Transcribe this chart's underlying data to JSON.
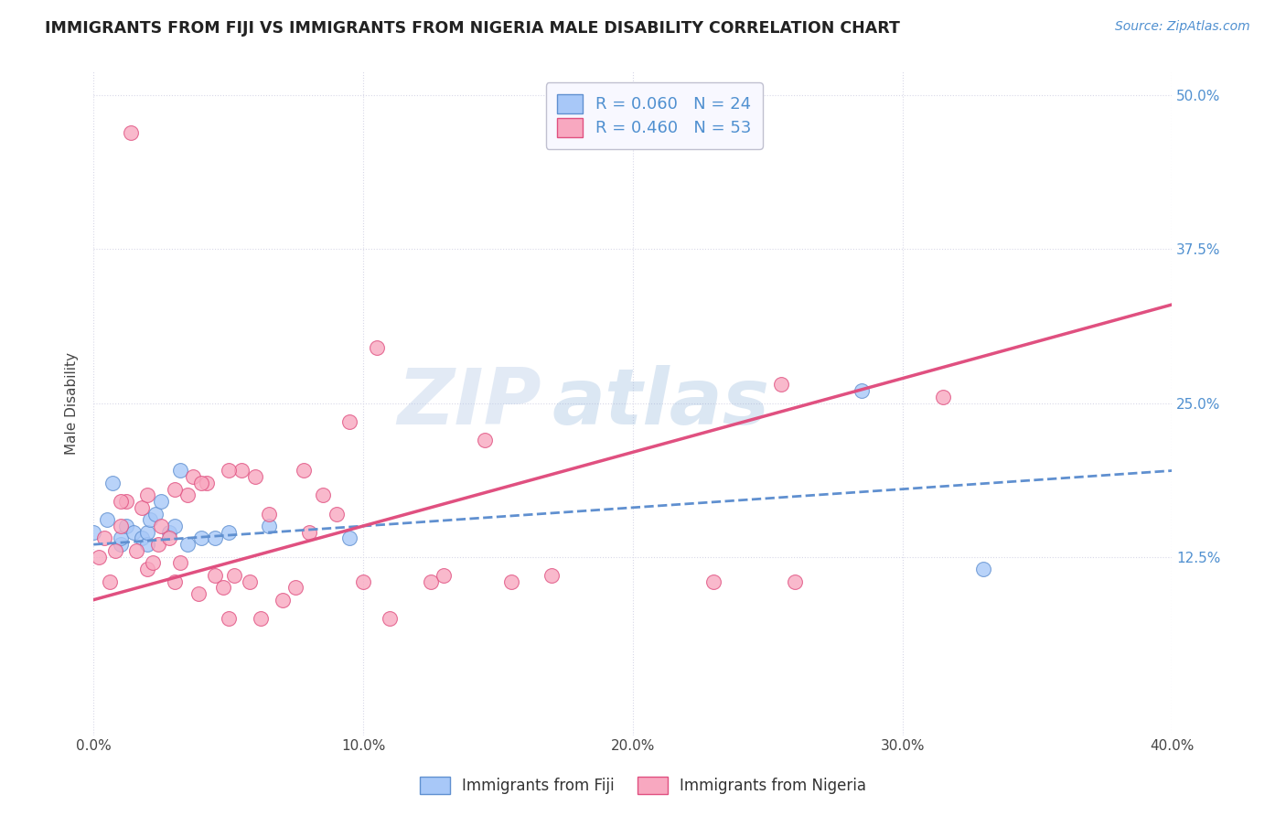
{
  "title": "IMMIGRANTS FROM FIJI VS IMMIGRANTS FROM NIGERIA MALE DISABILITY CORRELATION CHART",
  "source": "Source: ZipAtlas.com",
  "ylabel_label": "Male Disability",
  "xlim": [
    0.0,
    40.0
  ],
  "ylim": [
    -2.0,
    52.0
  ],
  "xticks": [
    0.0,
    10.0,
    20.0,
    30.0,
    40.0
  ],
  "yticks_right": [
    12.5,
    25.0,
    37.5,
    50.0
  ],
  "ytick_labels_right": [
    "12.5%",
    "25.0%",
    "37.5%",
    "50.0%"
  ],
  "xtick_labels": [
    "0.0%",
    "10.0%",
    "20.0%",
    "30.0%",
    "40.0%"
  ],
  "fiji_color": "#a8c8f8",
  "nigeria_color": "#f8a8c0",
  "fiji_line_color": "#6090d0",
  "nigeria_line_color": "#e05080",
  "fiji_R": 0.06,
  "fiji_N": 24,
  "nigeria_R": 0.46,
  "nigeria_N": 53,
  "fiji_x": [
    0.0,
    0.5,
    0.7,
    1.0,
    1.0,
    1.2,
    1.5,
    1.8,
    2.0,
    2.0,
    2.1,
    2.3,
    2.5,
    2.8,
    3.0,
    3.2,
    3.5,
    4.0,
    4.5,
    5.0,
    6.5,
    9.5,
    28.5,
    33.0
  ],
  "fiji_y": [
    14.5,
    15.5,
    18.5,
    13.5,
    14.0,
    15.0,
    14.5,
    14.0,
    13.5,
    14.5,
    15.5,
    16.0,
    17.0,
    14.5,
    15.0,
    19.5,
    13.5,
    14.0,
    14.0,
    14.5,
    15.0,
    14.0,
    26.0,
    11.5
  ],
  "nigeria_x": [
    0.2,
    0.4,
    0.6,
    0.8,
    1.0,
    1.2,
    1.4,
    1.6,
    1.8,
    2.0,
    2.2,
    2.4,
    2.5,
    2.8,
    3.0,
    3.2,
    3.5,
    3.7,
    3.9,
    4.2,
    4.5,
    4.8,
    5.0,
    5.2,
    5.5,
    5.8,
    6.0,
    6.2,
    6.5,
    7.0,
    7.5,
    7.8,
    8.0,
    8.5,
    9.0,
    9.5,
    10.0,
    10.5,
    11.0,
    12.5,
    13.0,
    14.5,
    15.5,
    17.0,
    23.0,
    25.5,
    26.0,
    31.5,
    1.0,
    2.0,
    3.0,
    4.0,
    5.0
  ],
  "nigeria_y": [
    12.5,
    14.0,
    10.5,
    13.0,
    15.0,
    17.0,
    47.0,
    13.0,
    16.5,
    11.5,
    12.0,
    13.5,
    15.0,
    14.0,
    10.5,
    12.0,
    17.5,
    19.0,
    9.5,
    18.5,
    11.0,
    10.0,
    7.5,
    11.0,
    19.5,
    10.5,
    19.0,
    7.5,
    16.0,
    9.0,
    10.0,
    19.5,
    14.5,
    17.5,
    16.0,
    23.5,
    10.5,
    29.5,
    7.5,
    10.5,
    11.0,
    22.0,
    10.5,
    11.0,
    10.5,
    26.5,
    10.5,
    25.5,
    17.0,
    17.5,
    18.0,
    18.5,
    19.5
  ],
  "background_color": "#ffffff",
  "grid_color": "#d8d8e8",
  "watermark_zip": "ZIP",
  "watermark_atlas": "atlas",
  "legend_box_color": "#f8f8ff",
  "legend_border_color": "#c0c0d0",
  "nigeria_line_x0": 0.0,
  "nigeria_line_y0": 9.0,
  "nigeria_line_x1": 40.0,
  "nigeria_line_y1": 33.0,
  "fiji_line_x0": 0.0,
  "fiji_line_y0": 13.5,
  "fiji_line_x1": 40.0,
  "fiji_line_y1": 19.5
}
